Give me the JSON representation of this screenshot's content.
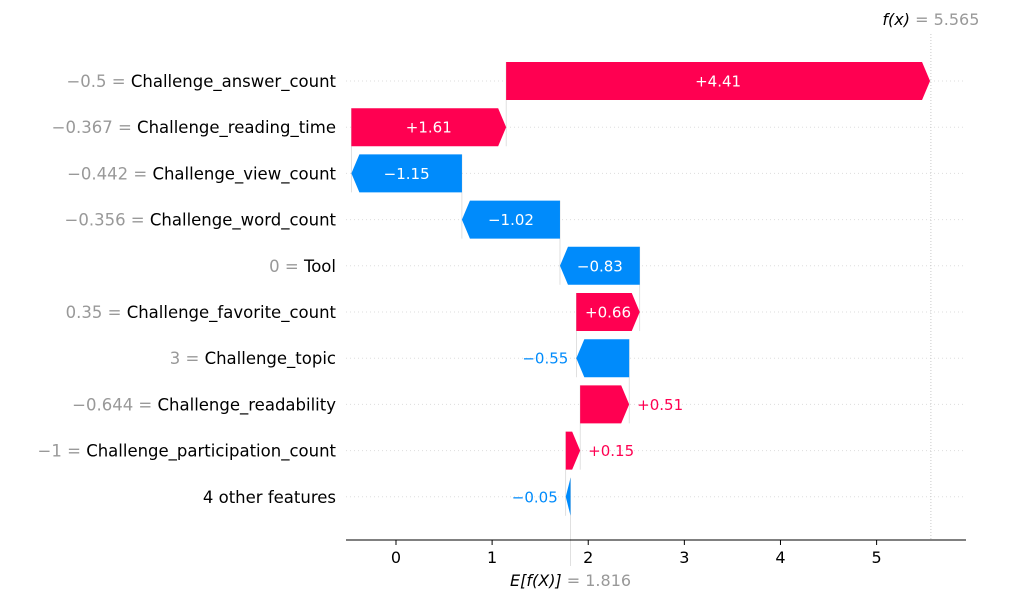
{
  "chart_data": {
    "type": "waterfall",
    "xlim": [
      -0.52,
      5.93
    ],
    "x_ticks": [
      0,
      1,
      2,
      3,
      4,
      5
    ],
    "base_value": 1.816,
    "output_value": 5.565,
    "fx_label": {
      "prefix": "f(x)",
      "value_text": " = 5.565"
    },
    "efx_label": {
      "prefix": "E[f(X)]",
      "value_text": " = 1.816"
    },
    "colors": {
      "positive": "#ff0051",
      "negative": "#008bfb",
      "axis": "#000000",
      "grey": "#999999",
      "grid": "#dddddd"
    },
    "features": [
      {
        "value": "−0.5",
        "name": "Challenge_answer_count",
        "shap": 4.41,
        "label": "+4.41"
      },
      {
        "value": "−0.367",
        "name": "Challenge_reading_time",
        "shap": 1.61,
        "label": "+1.61"
      },
      {
        "value": "−0.442",
        "name": "Challenge_view_count",
        "shap": -1.15,
        "label": "−1.15"
      },
      {
        "value": "−0.356",
        "name": "Challenge_word_count",
        "shap": -1.02,
        "label": "−1.02"
      },
      {
        "value": "0",
        "name": "Tool",
        "shap": -0.83,
        "label": "−0.83"
      },
      {
        "value": "0.35",
        "name": "Challenge_favorite_count",
        "shap": 0.66,
        "label": "+0.66"
      },
      {
        "value": "3",
        "name": "Challenge_topic",
        "shap": -0.55,
        "label": "−0.55"
      },
      {
        "value": "−0.644",
        "name": "Challenge_readability",
        "shap": 0.51,
        "label": "+0.51"
      },
      {
        "value": "−1",
        "name": "Challenge_participation_count",
        "shap": 0.15,
        "label": "+0.15"
      },
      {
        "value": "",
        "name": "4 other features",
        "shap": -0.05,
        "label": "−0.05"
      }
    ]
  }
}
